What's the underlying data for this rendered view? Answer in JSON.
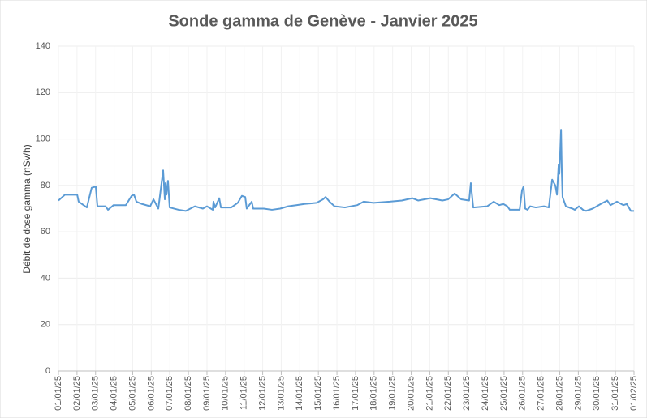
{
  "chart_data": {
    "type": "line",
    "title": "Sonde gamma de Genève - Janvier 2025",
    "y_label": "Débit de dose gamma (nSv/h)",
    "x": [
      0,
      0.35,
      1.01,
      1.09,
      1.53,
      1.79,
      2.01,
      2.1,
      2.54,
      2.67,
      2.97,
      3.63,
      3.94,
      4.07,
      4.2,
      4.5,
      4.94,
      5.12,
      5.38,
      5.64,
      5.73,
      5.77,
      5.82,
      5.9,
      5.99,
      6.47,
      6.86,
      7.35,
      7.78,
      8.0,
      8.31,
      8.35,
      8.44,
      8.66,
      8.75,
      9.31,
      9.66,
      9.88,
      10.06,
      10.14,
      10.41,
      10.49,
      11.06,
      11.5,
      11.94,
      12.37,
      12.81,
      13.25,
      13.9,
      14.25,
      14.39,
      14.6,
      14.87,
      15.43,
      16.09,
      16.44,
      16.97,
      17.84,
      18.5,
      19.06,
      19.37,
      20.03,
      20.68,
      20.99,
      21.34,
      21.69,
      22.12,
      22.21,
      22.34,
      23.09,
      23.44,
      23.74,
      23.96,
      24.18,
      24.31,
      24.84,
      24.97,
      25.05,
      25.14,
      25.27,
      25.4,
      25.71,
      26.15,
      26.41,
      26.59,
      26.76,
      26.85,
      26.94,
      26.98,
      27.07,
      27.11,
      27.15,
      27.33,
      27.68,
      27.81,
      28.03,
      28.25,
      28.42,
      28.77,
      29.21,
      29.56,
      29.73,
      30.08,
      30.43,
      30.61,
      30.83,
      31.0
    ],
    "series": [
      {
        "name": "Débit de dose gamma",
        "color": "#5b9bd5",
        "values": [
          73.5,
          76,
          76,
          73,
          70.5,
          79,
          79.5,
          71,
          71,
          69.5,
          71.5,
          71.5,
          75.5,
          76,
          73,
          72,
          71,
          74,
          70,
          86.5,
          74,
          81,
          76,
          82,
          70.5,
          69.5,
          69,
          71,
          70,
          71,
          69.5,
          73,
          70.5,
          74.5,
          70.5,
          70.5,
          72.5,
          75.5,
          75,
          70,
          73,
          70,
          70,
          69.5,
          70,
          71,
          71.5,
          72,
          72.5,
          74,
          75,
          73,
          71,
          70.5,
          71.5,
          73,
          72.5,
          73,
          73.5,
          74.5,
          73.5,
          74.5,
          73.5,
          74,
          76.5,
          74,
          73.5,
          81,
          70.5,
          71,
          73,
          71.5,
          72,
          71,
          69.5,
          69.5,
          78,
          79.5,
          70,
          69.5,
          71,
          70.5,
          71,
          70.5,
          82.5,
          80,
          76,
          89,
          85,
          104,
          86,
          75,
          71,
          70,
          69.5,
          71,
          69.5,
          69,
          70,
          72,
          73.5,
          71.5,
          73,
          71.5,
          72,
          69,
          69
        ]
      }
    ],
    "xlim": [
      0,
      31
    ],
    "xticks": [
      {
        "value": 0,
        "label": "01/01/25"
      },
      {
        "value": 1,
        "label": "02/01/25"
      },
      {
        "value": 2,
        "label": "03/01/25"
      },
      {
        "value": 3,
        "label": "04/01/25"
      },
      {
        "value": 4,
        "label": "05/01/25"
      },
      {
        "value": 5,
        "label": "06/01/25"
      },
      {
        "value": 6,
        "label": "07/01/25"
      },
      {
        "value": 7,
        "label": "08/01/25"
      },
      {
        "value": 8,
        "label": "09/01/25"
      },
      {
        "value": 9,
        "label": "10/01/25"
      },
      {
        "value": 10,
        "label": "11/01/25"
      },
      {
        "value": 11,
        "label": "12/01/25"
      },
      {
        "value": 12,
        "label": "13/01/25"
      },
      {
        "value": 13,
        "label": "14/01/25"
      },
      {
        "value": 14,
        "label": "15/01/25"
      },
      {
        "value": 15,
        "label": "16/01/25"
      },
      {
        "value": 16,
        "label": "17/01/25"
      },
      {
        "value": 17,
        "label": "18/01/25"
      },
      {
        "value": 18,
        "label": "19/01/25"
      },
      {
        "value": 19,
        "label": "20/01/25"
      },
      {
        "value": 20,
        "label": "21/01/25"
      },
      {
        "value": 21,
        "label": "22/01/25"
      },
      {
        "value": 22,
        "label": "23/01/25"
      },
      {
        "value": 23,
        "label": "24/01/25"
      },
      {
        "value": 24,
        "label": "25/01/25"
      },
      {
        "value": 25,
        "label": "26/01/25"
      },
      {
        "value": 26,
        "label": "27/01/25"
      },
      {
        "value": 27,
        "label": "28/01/25"
      },
      {
        "value": 28,
        "label": "29/01/25"
      },
      {
        "value": 29,
        "label": "30/01/25"
      },
      {
        "value": 30,
        "label": "31/01/25"
      },
      {
        "value": 31,
        "label": "01/02/25"
      }
    ],
    "ylim": [
      0,
      140
    ],
    "yticks": [
      0,
      20,
      40,
      60,
      80,
      100,
      120,
      140
    ],
    "grid": true
  }
}
